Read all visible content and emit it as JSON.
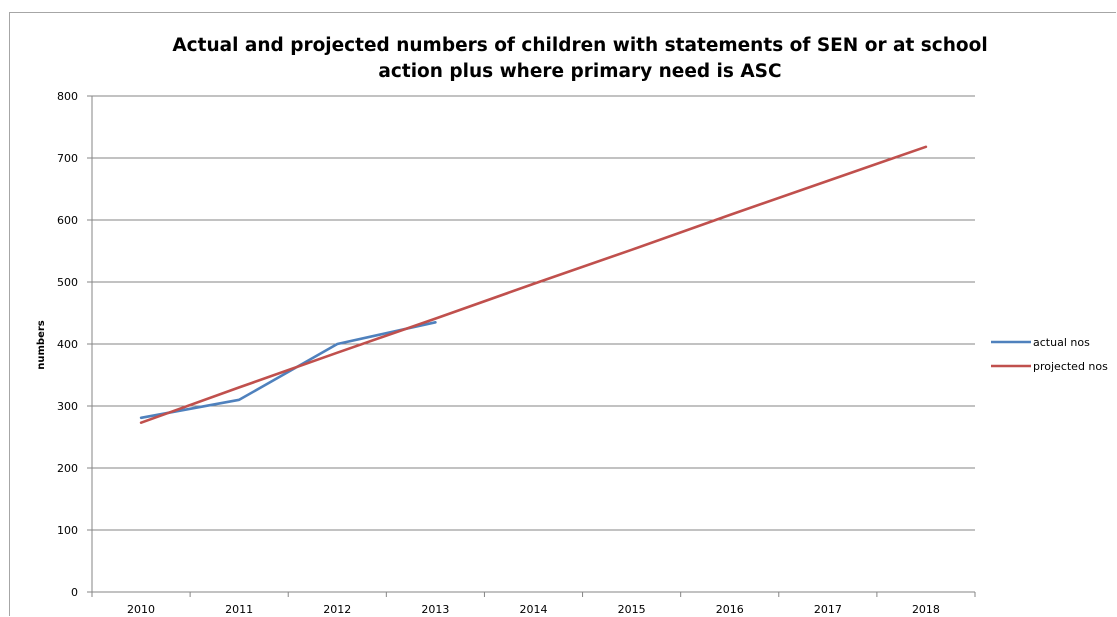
{
  "chart_data": {
    "type": "line",
    "title_lines": [
      "Actual and projected numbers of children with statements of SEN or at school",
      "action plus where primary need is ASC"
    ],
    "xlabel": "",
    "ylabel": "numbers",
    "categories": [
      "2010",
      "2011",
      "2012",
      "2013",
      "2014",
      "2015",
      "2016",
      "2017",
      "2018"
    ],
    "ylim": [
      0,
      800
    ],
    "yticks": [
      "0",
      "100",
      "200",
      "300",
      "400",
      "500",
      "600",
      "700",
      "800"
    ],
    "grid": "horizontal",
    "legend_position": "right",
    "series": [
      {
        "name": "actual nos",
        "color": "#4f81bd",
        "values": [
          281,
          310,
          400,
          435,
          null,
          null,
          null,
          null,
          null
        ]
      },
      {
        "name": "projected nos",
        "color": "#c0504d",
        "values": [
          273,
          330,
          386,
          441,
          497,
          552,
          608,
          663,
          718
        ]
      }
    ]
  }
}
